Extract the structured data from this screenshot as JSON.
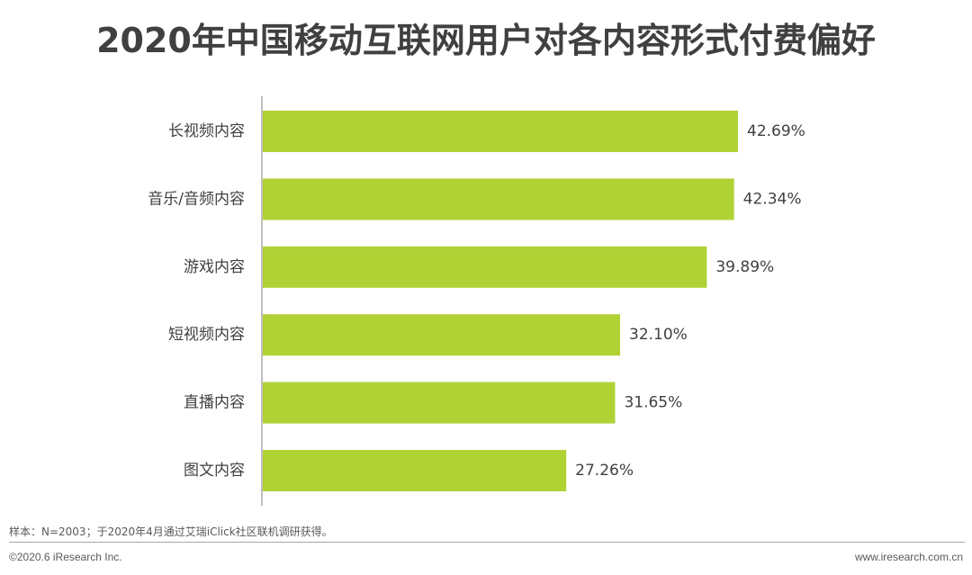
{
  "chart_data": {
    "type": "bar",
    "orientation": "horizontal",
    "title": "2020年中国移动互联网用户对各内容形式付费偏好",
    "categories": [
      "长视频内容",
      "音乐/音频内容",
      "游戏内容",
      "短视频内容",
      "直播内容",
      "图文内容"
    ],
    "values": [
      42.69,
      42.34,
      39.89,
      32.1,
      31.65,
      27.26
    ],
    "value_labels": [
      "42.69%",
      "42.34%",
      "39.89%",
      "32.10%",
      "31.65%",
      "27.26%"
    ],
    "unit": "%",
    "xlim": [
      0,
      50
    ],
    "grid": false,
    "bar_color": "#b1d234"
  },
  "footer": {
    "note": "样本：N=2003；于2020年4月通过艾瑞iClick社区联机调研获得。",
    "copyright": "©2020.6 iResearch Inc.",
    "website": "www.iresearch.com.cn"
  }
}
